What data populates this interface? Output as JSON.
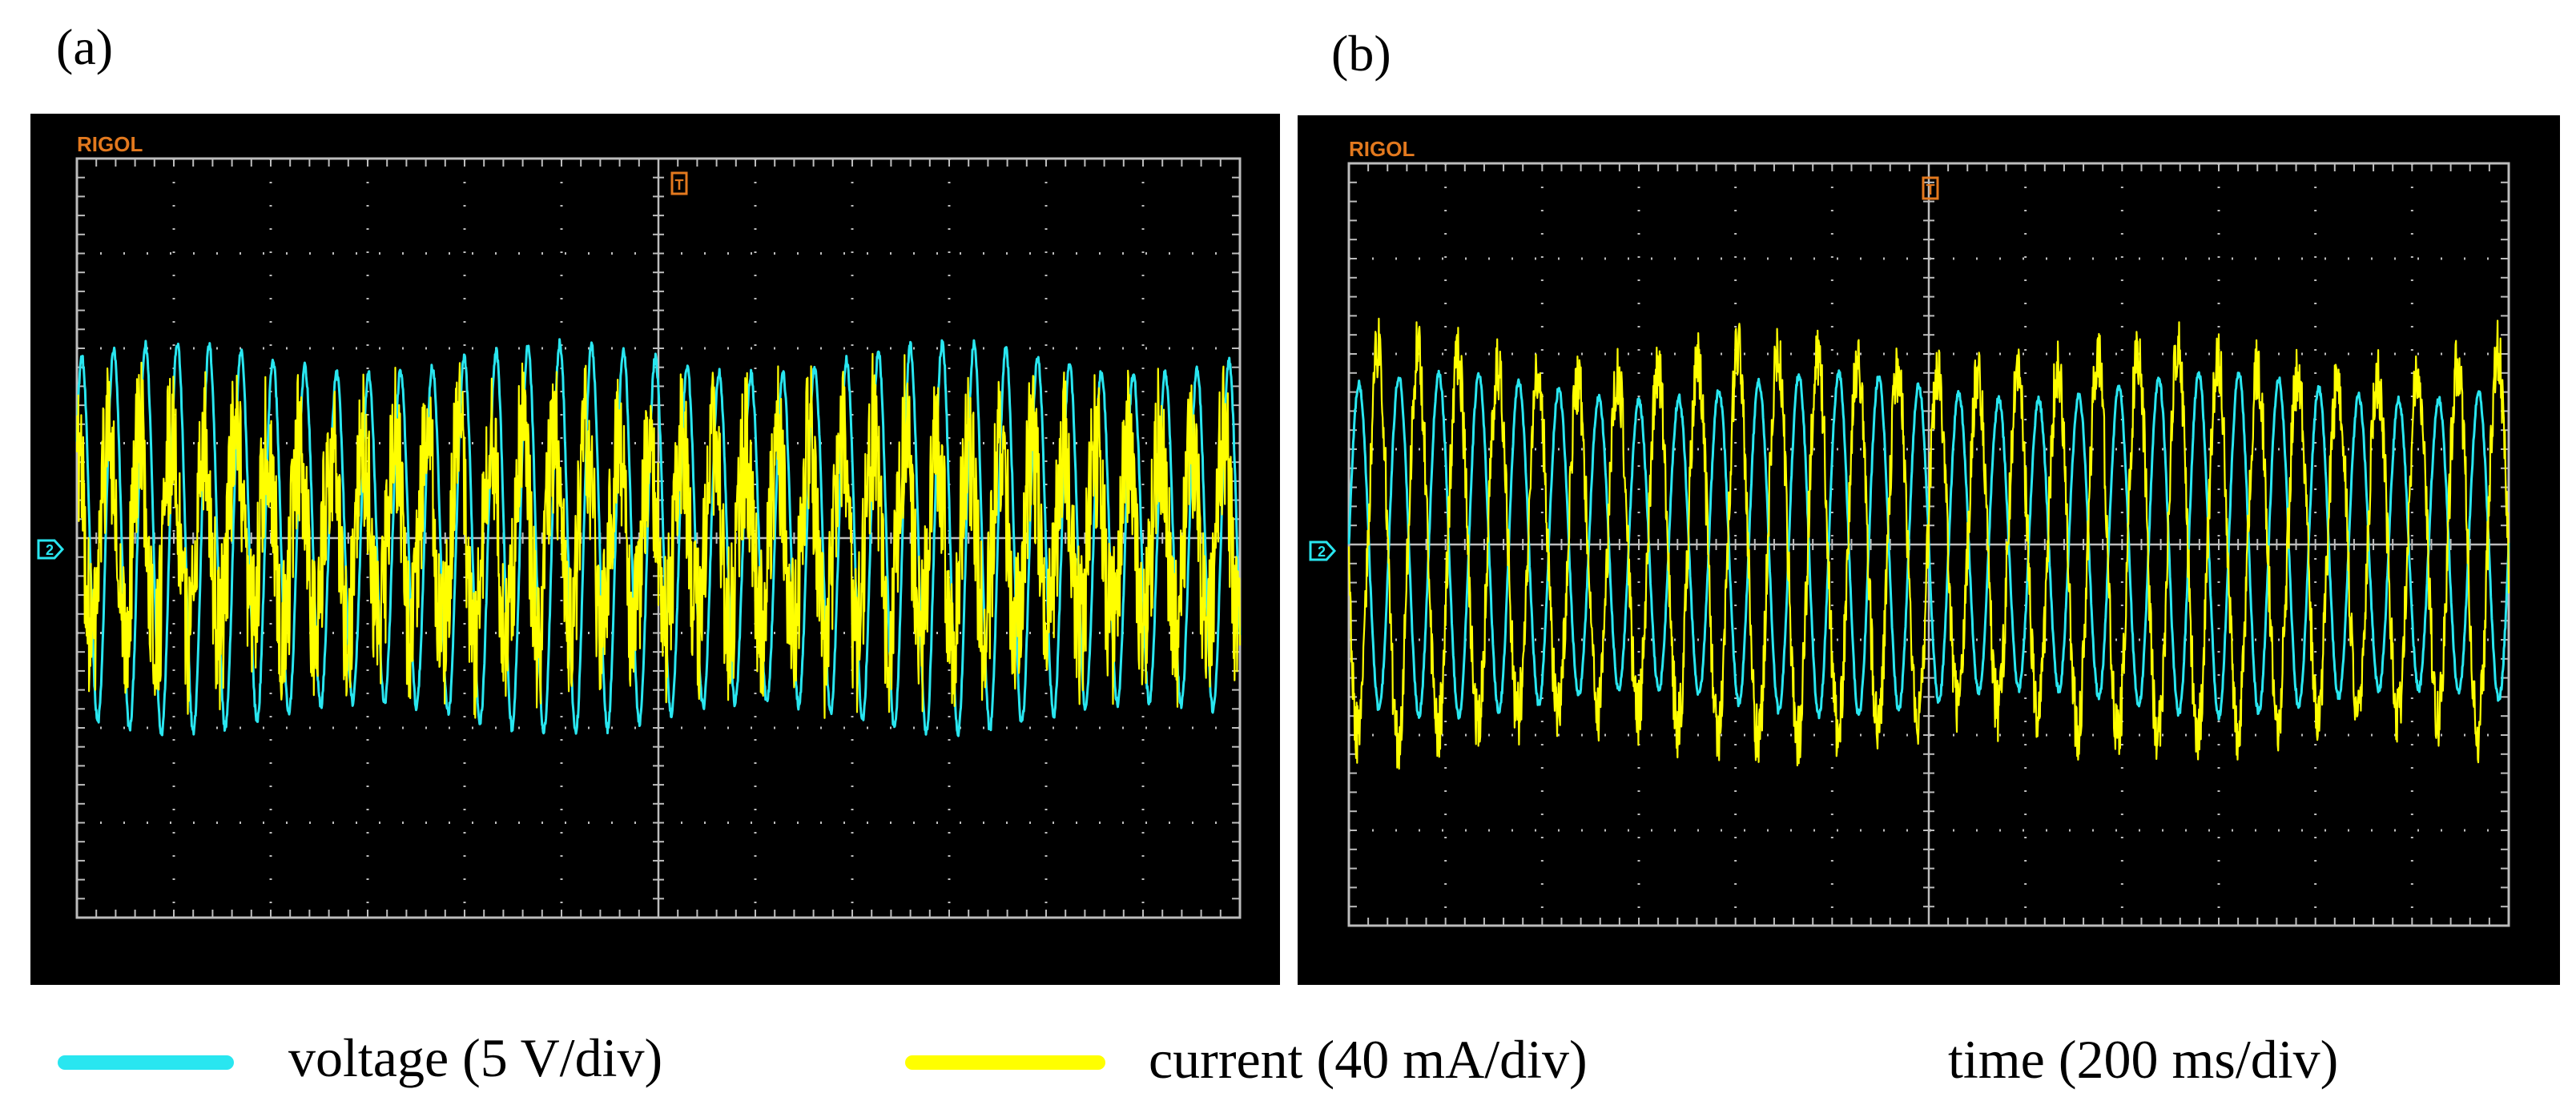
{
  "panels": [
    {
      "label": "(a)",
      "brand": "RIGOL",
      "trigger_marker": "T",
      "channel_marker": "2"
    },
    {
      "label": "(b)",
      "brand": "RIGOL",
      "trigger_marker": "T",
      "channel_marker": "2"
    }
  ],
  "legend": {
    "voltage": {
      "label": "voltage (5 V/div)",
      "color": "#29e6f0"
    },
    "current": {
      "label": "current (40 mA/div)",
      "color": "#ffff00"
    },
    "time": {
      "label": "time (200 ms/div)"
    }
  },
  "colors": {
    "screen": "#000000",
    "grid": "#bdbdbd",
    "brand": "#e3791e",
    "voltage": "#29e6f0",
    "current": "#ffff00"
  },
  "chart_data": [
    {
      "type": "line",
      "title": "(a)",
      "xlabel": "time (200 ms/div)",
      "divisions": {
        "x": 12,
        "y": 8
      },
      "xlim_div": [
        0,
        12
      ],
      "ylim_div": [
        -4,
        4
      ],
      "series": [
        {
          "name": "voltage (5 V/div)",
          "color": "#29e6f0",
          "amplitude_div": 2.05,
          "cycles": 36.5,
          "offset_div": 0,
          "noise_div": 0.05,
          "phase": 0.6
        },
        {
          "name": "current (40 mA/div)",
          "color": "#ffff00",
          "amplitude_div": 1.1,
          "cycles": 36.5,
          "offset_div": 0,
          "noise_div": 0.85,
          "phase": 1.7
        }
      ]
    },
    {
      "type": "line",
      "title": "(b)",
      "xlabel": "time (200 ms/div)",
      "divisions": {
        "x": 12,
        "y": 8
      },
      "xlim_div": [
        0,
        12
      ],
      "ylim_div": [
        -4,
        4
      ],
      "series": [
        {
          "name": "voltage (5 V/div)",
          "color": "#29e6f0",
          "amplitude_div": 1.8,
          "cycles": 29,
          "offset_div": 0,
          "noise_div": 0.04,
          "phase": 0.0
        },
        {
          "name": "current (40 mA/div)",
          "color": "#ffff00",
          "amplitude_div": 2.05,
          "cycles": 29,
          "offset_div": 0,
          "noise_div": 0.35,
          "phase": 3.3
        }
      ]
    }
  ]
}
